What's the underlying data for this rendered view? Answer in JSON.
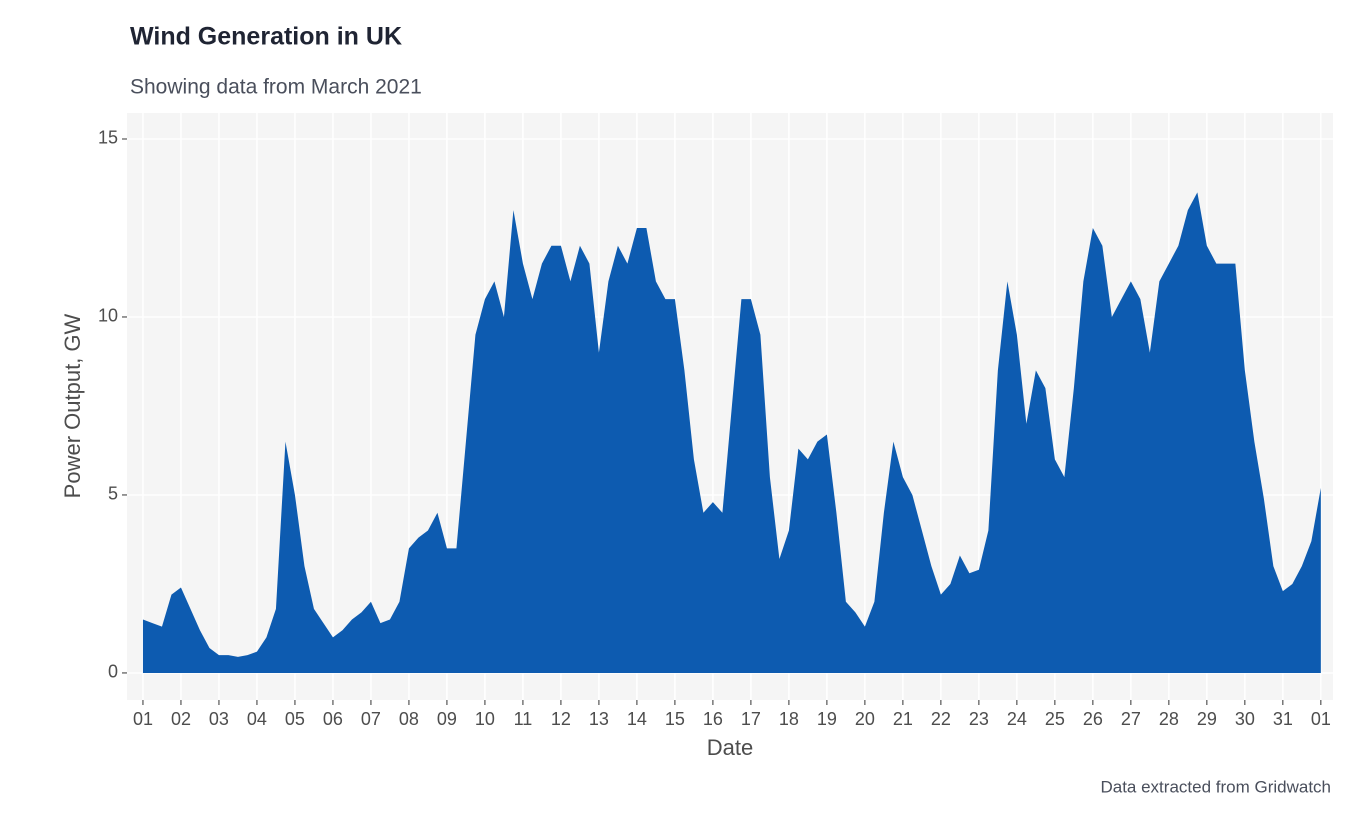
{
  "chart_data": {
    "type": "area",
    "title": "Wind Generation in UK",
    "subtitle": "Showing data from March 2021",
    "x_label": "Date",
    "y_label": "Power Output, GW",
    "caption": "Data extracted from Gridwatch",
    "color": "#0d5bb0",
    "grid": true,
    "xlim": [
      -0.42,
      31.32
    ],
    "ylim": [
      -0.76,
      15.73
    ],
    "yticks": [
      0,
      5,
      10,
      15
    ],
    "xticks": [
      {
        "value": 0,
        "label": "01"
      },
      {
        "value": 1,
        "label": "02"
      },
      {
        "value": 2,
        "label": "03"
      },
      {
        "value": 3,
        "label": "04"
      },
      {
        "value": 4,
        "label": "05"
      },
      {
        "value": 5,
        "label": "06"
      },
      {
        "value": 6,
        "label": "07"
      },
      {
        "value": 7,
        "label": "08"
      },
      {
        "value": 8,
        "label": "09"
      },
      {
        "value": 9,
        "label": "10"
      },
      {
        "value": 10,
        "label": "11"
      },
      {
        "value": 11,
        "label": "12"
      },
      {
        "value": 12,
        "label": "13"
      },
      {
        "value": 13,
        "label": "14"
      },
      {
        "value": 14,
        "label": "15"
      },
      {
        "value": 15,
        "label": "16"
      },
      {
        "value": 16,
        "label": "17"
      },
      {
        "value": 17,
        "label": "18"
      },
      {
        "value": 18,
        "label": "19"
      },
      {
        "value": 19,
        "label": "20"
      },
      {
        "value": 20,
        "label": "21"
      },
      {
        "value": 21,
        "label": "22"
      },
      {
        "value": 22,
        "label": "23"
      },
      {
        "value": 23,
        "label": "24"
      },
      {
        "value": 24,
        "label": "25"
      },
      {
        "value": 25,
        "label": "26"
      },
      {
        "value": 26,
        "label": "27"
      },
      {
        "value": 27,
        "label": "28"
      },
      {
        "value": 28,
        "label": "29"
      },
      {
        "value": 29,
        "label": "30"
      },
      {
        "value": 30,
        "label": "31"
      },
      {
        "value": 31,
        "label": "01"
      }
    ],
    "x": [
      0,
      0.25,
      0.5,
      0.75,
      1,
      1.25,
      1.5,
      1.75,
      2,
      2.25,
      2.5,
      2.75,
      3,
      3.25,
      3.5,
      3.75,
      4,
      4.25,
      4.5,
      4.75,
      5,
      5.25,
      5.5,
      5.75,
      6,
      6.25,
      6.5,
      6.75,
      7,
      7.25,
      7.5,
      7.75,
      8,
      8.25,
      8.5,
      8.75,
      9,
      9.25,
      9.5,
      9.75,
      10,
      10.25,
      10.5,
      10.75,
      11,
      11.25,
      11.5,
      11.75,
      12,
      12.25,
      12.5,
      12.75,
      13,
      13.25,
      13.5,
      13.75,
      14,
      14.25,
      14.5,
      14.75,
      15,
      15.25,
      15.5,
      15.75,
      16,
      16.25,
      16.5,
      16.75,
      17,
      17.25,
      17.5,
      17.75,
      18,
      18.25,
      18.5,
      18.75,
      19,
      19.25,
      19.5,
      19.75,
      20,
      20.25,
      20.5,
      20.75,
      21,
      21.25,
      21.5,
      21.75,
      22,
      22.25,
      22.5,
      22.75,
      23,
      23.25,
      23.5,
      23.75,
      24,
      24.25,
      24.5,
      24.75,
      25,
      25.25,
      25.5,
      25.75,
      26,
      26.25,
      26.5,
      26.75,
      27,
      27.25,
      27.5,
      27.75,
      28,
      28.25,
      28.5,
      28.75,
      29,
      29.25,
      29.5,
      29.75,
      30,
      30.25,
      30.5,
      30.75,
      31
    ],
    "values": [
      1.5,
      1.4,
      1.3,
      2.2,
      2.4,
      1.8,
      1.2,
      0.7,
      0.5,
      0.5,
      0.45,
      0.5,
      0.6,
      1.0,
      1.8,
      6.5,
      5.0,
      3.0,
      1.8,
      1.4,
      1.0,
      1.2,
      1.5,
      1.7,
      2.0,
      1.4,
      1.5,
      2.0,
      3.5,
      3.8,
      4.0,
      4.5,
      3.5,
      3.5,
      6.5,
      9.5,
      10.5,
      11.0,
      10.0,
      13.0,
      11.5,
      10.5,
      11.5,
      12.0,
      12.0,
      11.0,
      12.0,
      11.5,
      9.0,
      11.0,
      12.0,
      11.5,
      12.5,
      12.5,
      11.0,
      10.5,
      10.5,
      8.5,
      6.0,
      4.5,
      4.8,
      4.5,
      7.5,
      10.5,
      10.5,
      9.5,
      5.5,
      3.2,
      4.0,
      6.3,
      6.0,
      6.5,
      6.7,
      4.5,
      2.0,
      1.7,
      1.3,
      2.0,
      4.5,
      6.5,
      5.5,
      5.0,
      4.0,
      3.0,
      2.2,
      2.5,
      3.3,
      2.8,
      2.9,
      4.0,
      8.5,
      11.0,
      9.5,
      7.0,
      8.5,
      8.0,
      6.0,
      5.5,
      8.0,
      11.0,
      12.5,
      12.0,
      10.0,
      10.5,
      11.0,
      10.5,
      9.0,
      11.0,
      11.5,
      12.0,
      13.0,
      13.5,
      12.0,
      11.5,
      11.5,
      11.5,
      8.5,
      6.5,
      4.9,
      3.0,
      2.3,
      2.5,
      3.0,
      3.7,
      5.2
    ]
  }
}
